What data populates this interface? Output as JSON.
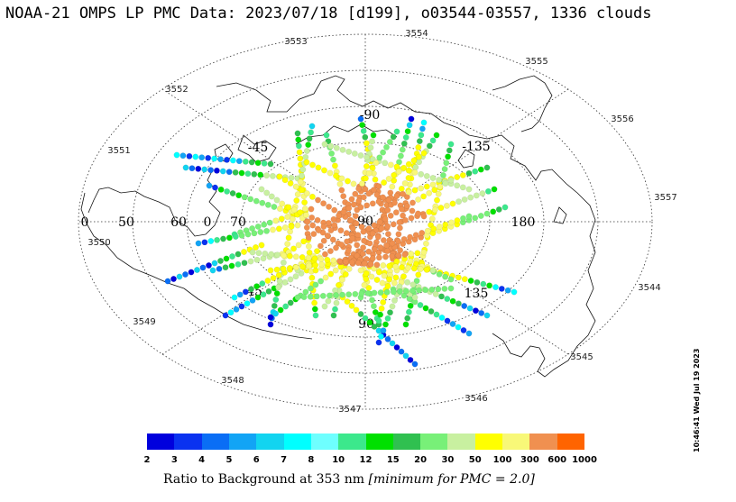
{
  "title": "NOAA-21 OMPS LP PMC Data: 2023/07/18 [d199], o03544-03557, 1336 clouds",
  "timestamp": "10:46:41 Wed Jul 19 2023",
  "colorbar": {
    "tick_labels": [
      "2",
      "3",
      "4",
      "5",
      "6",
      "7",
      "8",
      "10",
      "12",
      "15",
      "20",
      "30",
      "50",
      "100",
      "300",
      "600",
      "1000"
    ],
    "colors": [
      "#0000dd",
      "#0a32f0",
      "#0a6ef5",
      "#12a4f5",
      "#12d4f0",
      "#00ffff",
      "#6effff",
      "#3ce88c",
      "#00e000",
      "#30c050",
      "#78f078",
      "#c8f0a0",
      "#ffff00",
      "#f8f878",
      "#f09050",
      "#ff6400",
      "#ff0000"
    ],
    "caption_prefix": "Ratio to Background at 353 nm",
    "caption_note": "[minimum for PMC = 2.0]"
  },
  "map": {
    "projection": "north polar stereographic",
    "orbit_labels": [
      "3553",
      "3554",
      "3555",
      "3556",
      "3557",
      "3544",
      "3545",
      "3546",
      "3547",
      "3548",
      "3549",
      "3550",
      "3551",
      "3552"
    ],
    "grid_labels": {
      "lon_top": "-90",
      "lon_topright": "-135",
      "lon_right": "180",
      "lon_bottomright": "135",
      "lon_bottom": "90",
      "lon_bottomleft": "45",
      "lon_topleft": "-45",
      "center": "90",
      "lat_50": "50",
      "lat_60": "60",
      "lat_70": "70",
      "lon_left_zero": "0",
      "lat_inner_zero": "0"
    }
  }
}
